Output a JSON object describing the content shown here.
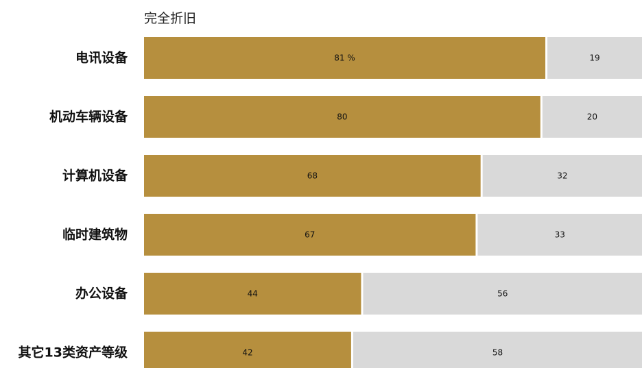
{
  "chart_data": {
    "type": "bar",
    "orientation": "horizontal",
    "stacked": true,
    "categories": [
      "电讯设备",
      "机动车辆设备",
      "计算机设备",
      "临时建筑物",
      "办公设备",
      "其它13类资产等级"
    ],
    "series": [
      {
        "name": "完全折旧",
        "values": [
          81,
          80,
          68,
          67,
          44,
          42
        ],
        "color": "#b68f3e"
      },
      {
        "values": [
          19,
          20,
          32,
          33,
          56,
          58
        ],
        "color": "#d9d9d9"
      }
    ],
    "first_value_suffix": " %",
    "xlim": [
      0,
      100
    ],
    "grid": false,
    "legend_position": "top-left"
  }
}
